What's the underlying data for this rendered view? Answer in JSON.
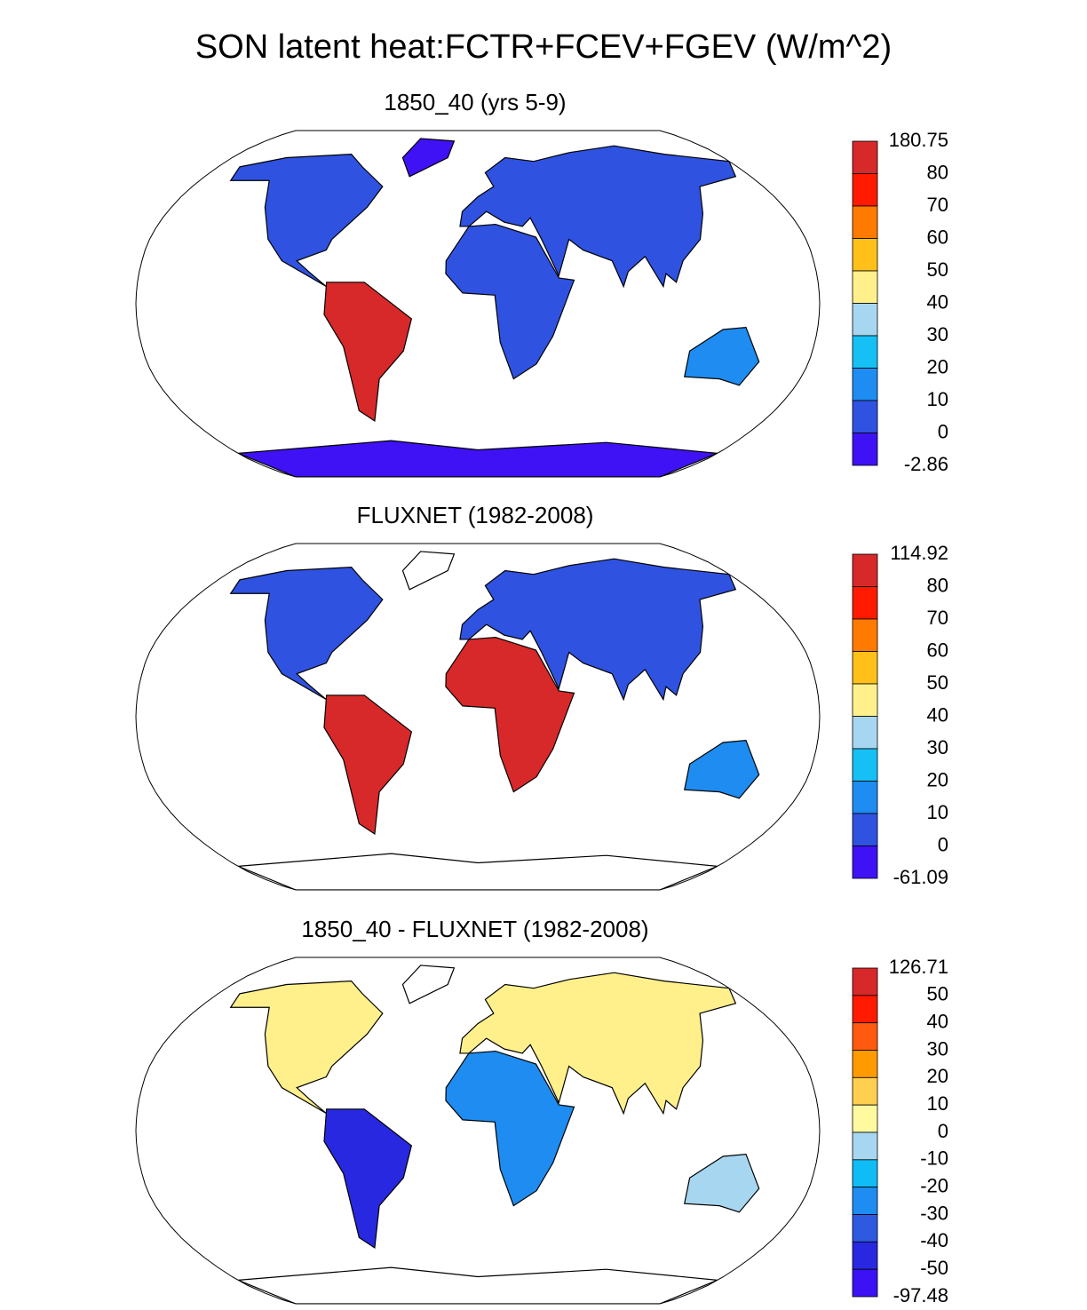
{
  "title": "SON latent heat:FCTR+FCEV+FGEV (W/m^2)",
  "panels": [
    {
      "subtitle": "1850_40 (yrs 5-9)",
      "colorbar": {
        "labels": [
          "180.75",
          "80",
          "70",
          "60",
          "50",
          "40",
          "30",
          "20",
          "10",
          "0",
          "-2.86"
        ],
        "colors": [
          "#d7282a",
          "#ff1a00",
          "#ff7a00",
          "#ffc01a",
          "#fff08c",
          "#a7d7f0",
          "#16c0f4",
          "#1e8cf0",
          "#2f52e0",
          "#3f12f5"
        ]
      }
    },
    {
      "subtitle": "FLUXNET (1982-2008)",
      "colorbar": {
        "labels": [
          "114.92",
          "80",
          "70",
          "60",
          "50",
          "40",
          "30",
          "20",
          "10",
          "0",
          "-61.09"
        ],
        "colors": [
          "#d7282a",
          "#ff1a00",
          "#ff7a00",
          "#ffc01a",
          "#fff08c",
          "#a7d7f0",
          "#16c0f4",
          "#1e8cf0",
          "#2f52e0",
          "#3f12f5"
        ]
      }
    },
    {
      "subtitle": "1850_40 - FLUXNET (1982-2008)",
      "colorbar": {
        "labels": [
          "126.71",
          "50",
          "40",
          "30",
          "20",
          "10",
          "0",
          "-10",
          "-20",
          "-30",
          "-40",
          "-50",
          "-97.48"
        ],
        "colors": [
          "#d7282a",
          "#ff1a00",
          "#ff5a10",
          "#ff9a00",
          "#ffd050",
          "#fffaa0",
          "#a7d7f0",
          "#10bcf5",
          "#1e8cf0",
          "#2d5ae0",
          "#2828e0",
          "#3c12f5"
        ]
      }
    }
  ]
}
